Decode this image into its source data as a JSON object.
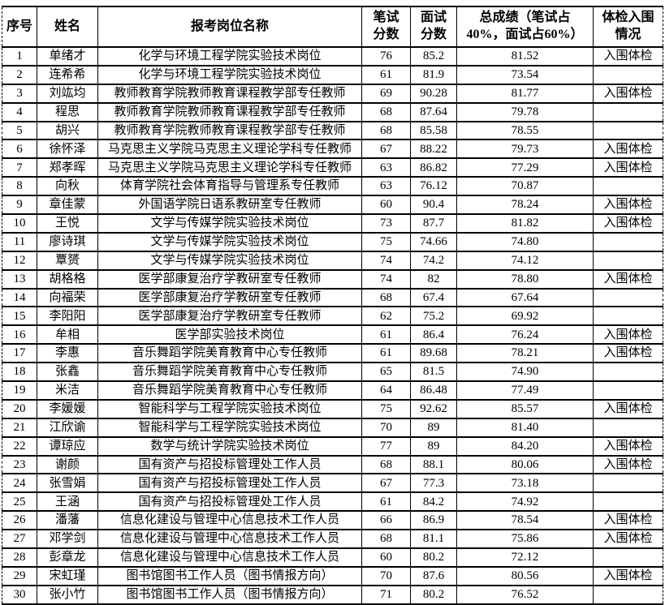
{
  "table": {
    "headers": [
      "序号",
      "姓名",
      "报考岗位名称",
      "笔试\n分数",
      "面试\n分数",
      "总成绩（笔试占\n40%，面试占60%）",
      "体检入围\n情况"
    ],
    "rows": [
      [
        "1",
        "单绪才",
        "化学与环境工程学院实验技术岗位",
        "76",
        "85.2",
        "81.52",
        "入围体检"
      ],
      [
        "2",
        "连希希",
        "化学与环境工程学院实验技术岗位",
        "61",
        "81.9",
        "73.54",
        ""
      ],
      [
        "3",
        "刘竑均",
        "教师教育学院教师教育课程教学部专任教师",
        "69",
        "90.28",
        "81.77",
        "入围体检"
      ],
      [
        "4",
        "程思",
        "教师教育学院教师教育课程教学部专任教师",
        "68",
        "87.64",
        "79.78",
        ""
      ],
      [
        "5",
        "胡兴",
        "教师教育学院教师教育课程教学部专任教师",
        "68",
        "85.58",
        "78.55",
        ""
      ],
      [
        "6",
        "徐怀泽",
        "马克思主义学院马克思主义理论学科专任教师",
        "67",
        "88.22",
        "79.73",
        "入围体检"
      ],
      [
        "7",
        "郑孝晖",
        "马克思主义学院马克思主义理论学科专任教师",
        "63",
        "86.82",
        "77.29",
        "入围体检"
      ],
      [
        "8",
        "向秋",
        "体育学院社会体育指导与管理系专任教师",
        "63",
        "76.12",
        "70.87",
        ""
      ],
      [
        "9",
        "章佳蒙",
        "外国语学院日语系教研室专任教师",
        "60",
        "90.4",
        "78.24",
        "入围体检"
      ],
      [
        "10",
        "王悦",
        "文学与传媒学院实验技术岗位",
        "73",
        "87.7",
        "81.82",
        "入围体检"
      ],
      [
        "11",
        "廖诗琪",
        "文学与传媒学院实验技术岗位",
        "75",
        "74.66",
        "74.80",
        ""
      ],
      [
        "12",
        "覃赟",
        "文学与传媒学院实验技术岗位",
        "74",
        "74.2",
        "74.12",
        ""
      ],
      [
        "13",
        "胡格格",
        "医学部康复治疗学教研室专任教师",
        "74",
        "82",
        "78.80",
        "入围体检"
      ],
      [
        "14",
        "向福荣",
        "医学部康复治疗学教研室专任教师",
        "68",
        "67.4",
        "67.64",
        ""
      ],
      [
        "15",
        "李阳阳",
        "医学部康复治疗学教研室专任教师",
        "62",
        "75.2",
        "69.92",
        ""
      ],
      [
        "16",
        "牟相",
        "医学部实验技术岗位",
        "61",
        "86.4",
        "76.24",
        "入围体检"
      ],
      [
        "17",
        "李惠",
        "音乐舞蹈学院美育教育中心专任教师",
        "61",
        "89.68",
        "78.21",
        "入围体检"
      ],
      [
        "18",
        "张鑫",
        "音乐舞蹈学院美育教育中心专任教师",
        "65",
        "81.5",
        "74.90",
        ""
      ],
      [
        "19",
        "米洁",
        "音乐舞蹈学院美育教育中心专任教师",
        "64",
        "86.48",
        "77.49",
        ""
      ],
      [
        "20",
        "李媛媛",
        "智能科学与工程学院实验技术岗位",
        "75",
        "92.62",
        "85.57",
        "入围体检"
      ],
      [
        "21",
        "江欣谕",
        "智能科学与工程学院实验技术岗位",
        "70",
        "89",
        "81.40",
        ""
      ],
      [
        "22",
        "谭琼应",
        "数学与统计学院实验技术岗位",
        "77",
        "89",
        "84.20",
        "入围体检"
      ],
      [
        "23",
        "谢颜",
        "国有资产与招投标管理处工作人员",
        "68",
        "88.1",
        "80.06",
        "入围体检"
      ],
      [
        "24",
        "张雪娟",
        "国有资产与招投标管理处工作人员",
        "67",
        "77.3",
        "73.18",
        ""
      ],
      [
        "25",
        "王涵",
        "国有资产与招投标管理处工作人员",
        "61",
        "84.2",
        "74.92",
        ""
      ],
      [
        "26",
        "潘藩",
        "信息化建设与管理中心信息技术工作人员",
        "66",
        "86.9",
        "78.54",
        "入围体检"
      ],
      [
        "27",
        "邓学剑",
        "信息化建设与管理中心信息技术工作人员",
        "68",
        "81.1",
        "75.86",
        "入围体检"
      ],
      [
        "28",
        "彭章龙",
        "信息化建设与管理中心信息技术工作人员",
        "60",
        "80.2",
        "72.12",
        ""
      ],
      [
        "29",
        "宋虹瑾",
        "图书馆图书工作人员（图书情报方向）",
        "70",
        "87.6",
        "80.56",
        "入围体检"
      ],
      [
        "30",
        "张小竹",
        "图书馆图书工作人员（图书情报方向）",
        "71",
        "80.2",
        "76.52",
        ""
      ]
    ],
    "qualified_label": "入围体检",
    "border_color": "#000000",
    "background_color": "#ffffff"
  }
}
